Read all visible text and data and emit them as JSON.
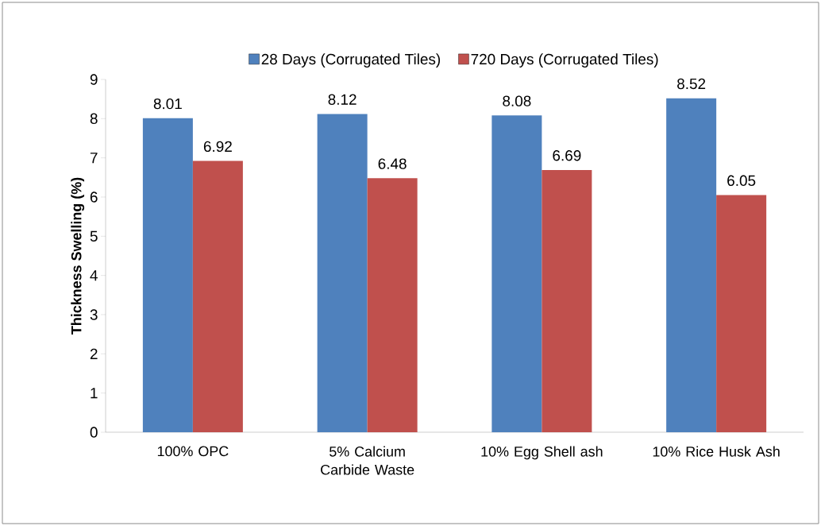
{
  "chart_data": {
    "type": "bar",
    "ylabel": "Thickness Swelling (%)",
    "categories": [
      "100% OPC",
      "5% Calcium Carbide Waste",
      "10% Egg Shell ash",
      "10% Rice Husk Ash"
    ],
    "series": [
      {
        "name": "28 Days (Corrugated Tiles)",
        "color": "#4f81bd",
        "values": [
          8.01,
          8.12,
          8.08,
          8.52
        ]
      },
      {
        "name": "720 Days (Corrugated Tiles)",
        "color": "#c0504d",
        "values": [
          6.92,
          6.48,
          6.69,
          6.05
        ]
      }
    ],
    "ylim": [
      0,
      9
    ],
    "yticks": [
      0,
      1,
      2,
      3,
      4,
      5,
      6,
      7,
      8,
      9
    ],
    "grid": false,
    "legend": "top",
    "data_labels": true
  }
}
